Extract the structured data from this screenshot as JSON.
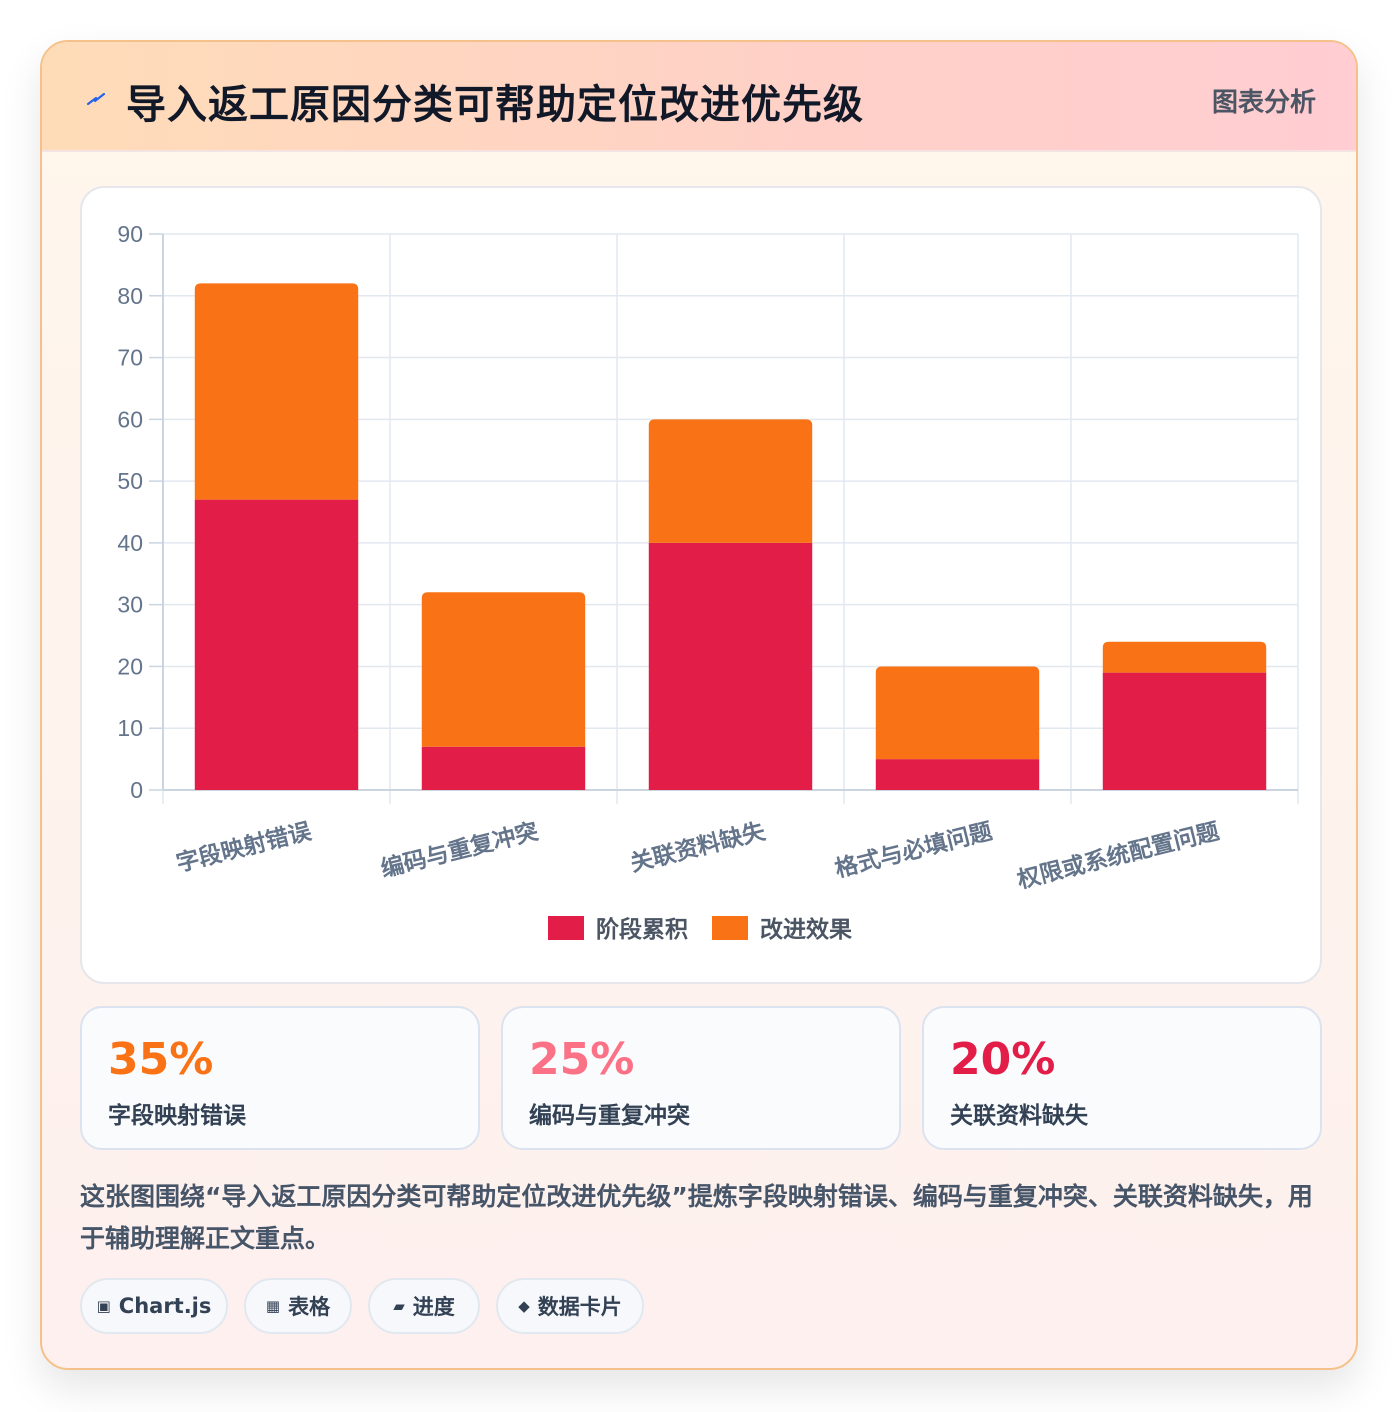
{
  "header": {
    "title": "导入返工原因分类可帮助定位改进优先级",
    "tag": "图表分析",
    "icon": "lightning-icon"
  },
  "chart_data": {
    "type": "bar",
    "stacked": true,
    "categories": [
      "字段映射错误",
      "编码与重复冲突",
      "关联资料缺失",
      "格式与必填问题",
      "权限或系统配置问题"
    ],
    "series": [
      {
        "name": "阶段累积",
        "color": "#e11d48",
        "values": [
          47,
          7,
          40,
          5,
          19
        ]
      },
      {
        "name": "改进效果",
        "color": "#f97316",
        "values": [
          35,
          25,
          20,
          15,
          5
        ]
      }
    ],
    "ylim": [
      0,
      90
    ],
    "yticks": [
      0,
      10,
      20,
      30,
      40,
      50,
      60,
      70,
      80,
      90
    ],
    "grid": true,
    "legend_position": "bottom"
  },
  "stats": [
    {
      "value": "35%",
      "label": "字段映射错误",
      "color": "#f97316"
    },
    {
      "value": "25%",
      "label": "编码与重复冲突",
      "color": "#fb7185"
    },
    {
      "value": "20%",
      "label": "关联资料缺失",
      "color": "#e11d48"
    }
  ],
  "description": "这张图围绕“导入返工原因分类可帮助定位改进优先级”提炼字段映射错误、编码与重复冲突、关联资料缺失，用于辅助理解正文重点。",
  "chips": [
    {
      "icon": "▣",
      "icon_name": "chart-icon",
      "label": "Chart.js"
    },
    {
      "icon": "▦",
      "icon_name": "table-icon",
      "label": "表格"
    },
    {
      "icon": "▰",
      "icon_name": "progress-icon",
      "label": "进度"
    },
    {
      "icon": "◆",
      "icon_name": "diamond-icon",
      "label": "数据卡片"
    }
  ]
}
